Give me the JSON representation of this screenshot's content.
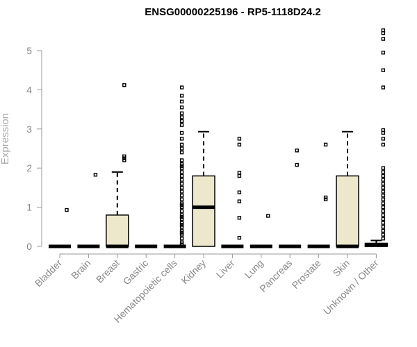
{
  "chart_data": {
    "type": "boxplot",
    "title": "ENSG00000225196 - RP5-1118D24.2",
    "ylabel": "Expression",
    "xlabel": "",
    "ylim": [
      0,
      5.6
    ],
    "yticks": [
      0,
      1,
      2,
      3,
      4,
      5
    ],
    "grid": false,
    "colors": {
      "box_fill": "#ede7cc",
      "stroke": "#000000",
      "axis": "#999999"
    },
    "categories": [
      "Bladder",
      "Brain",
      "Breast",
      "Gastric",
      "Hematopoietic cells",
      "Kidney",
      "Liver",
      "Lung",
      "Pancreas",
      "Prostate",
      "Skin",
      "Unknown / Other"
    ],
    "boxes": [
      {
        "category": "Bladder",
        "q1": 0,
        "median": 0,
        "q3": 0,
        "whisker_low": 0,
        "whisker_high": 0,
        "outliers": [
          0.93
        ]
      },
      {
        "category": "Brain",
        "q1": 0,
        "median": 0,
        "q3": 0,
        "whisker_low": 0,
        "whisker_high": 0,
        "outliers": [
          1.83
        ]
      },
      {
        "category": "Breast",
        "q1": 0,
        "median": 0,
        "q3": 0.8,
        "whisker_low": 0,
        "whisker_high": 1.9,
        "outliers": [
          2.2,
          2.25,
          2.3,
          4.12
        ]
      },
      {
        "category": "Gastric",
        "q1": 0,
        "median": 0,
        "q3": 0,
        "whisker_low": 0,
        "whisker_high": 0,
        "outliers": []
      },
      {
        "category": "Hematopoietic cells",
        "q1": 0,
        "median": 0,
        "q3": 0,
        "whisker_low": 0,
        "whisker_high": 0,
        "outliers": [
          0.05,
          0.1,
          0.2,
          0.3,
          0.35,
          0.4,
          0.5,
          0.55,
          0.6,
          0.7,
          0.75,
          0.8,
          0.9,
          1.0,
          1.05,
          1.1,
          1.2,
          1.3,
          1.4,
          1.5,
          1.6,
          1.7,
          1.8,
          1.9,
          2.0,
          2.05,
          2.1,
          2.2,
          2.4,
          2.5,
          2.6,
          2.75,
          2.9,
          3.1,
          3.2,
          3.3,
          3.4,
          3.55,
          3.7,
          3.85,
          4.06
        ]
      },
      {
        "category": "Kidney",
        "q1": 0,
        "median": 1.0,
        "q3": 1.8,
        "whisker_low": 0,
        "whisker_high": 2.93,
        "outliers": []
      },
      {
        "category": "Liver",
        "q1": 0,
        "median": 0,
        "q3": 0,
        "whisker_low": 0,
        "whisker_high": 0,
        "outliers": [
          0.22,
          0.73,
          1.15,
          1.38,
          1.8,
          1.88,
          2.6,
          2.75
        ]
      },
      {
        "category": "Lung",
        "q1": 0,
        "median": 0,
        "q3": 0,
        "whisker_low": 0,
        "whisker_high": 0,
        "outliers": [
          0.78
        ]
      },
      {
        "category": "Pancreas",
        "q1": 0,
        "median": 0,
        "q3": 0,
        "whisker_low": 0,
        "whisker_high": 0,
        "outliers": [
          2.08,
          2.45
        ]
      },
      {
        "category": "Prostate",
        "q1": 0,
        "median": 0,
        "q3": 0,
        "whisker_low": 0,
        "whisker_high": 0,
        "outliers": [
          1.2,
          1.25,
          2.6
        ]
      },
      {
        "category": "Skin",
        "q1": 0,
        "median": 0,
        "q3": 1.8,
        "whisker_low": 0,
        "whisker_high": 2.93,
        "outliers": []
      },
      {
        "category": "Unknown / Other",
        "q1": 0,
        "median": 0.03,
        "q3": 0.08,
        "whisker_low": 0,
        "whisker_high": 0.15,
        "outliers": [
          0.2,
          0.3,
          0.4,
          0.5,
          0.6,
          0.7,
          0.8,
          0.9,
          1.0,
          1.1,
          1.2,
          1.3,
          1.4,
          1.5,
          1.6,
          1.7,
          1.8,
          1.9,
          2.0,
          2.6,
          2.75,
          2.9,
          2.97,
          4.06,
          4.5,
          4.95,
          5.3,
          5.45,
          5.52
        ]
      }
    ]
  }
}
